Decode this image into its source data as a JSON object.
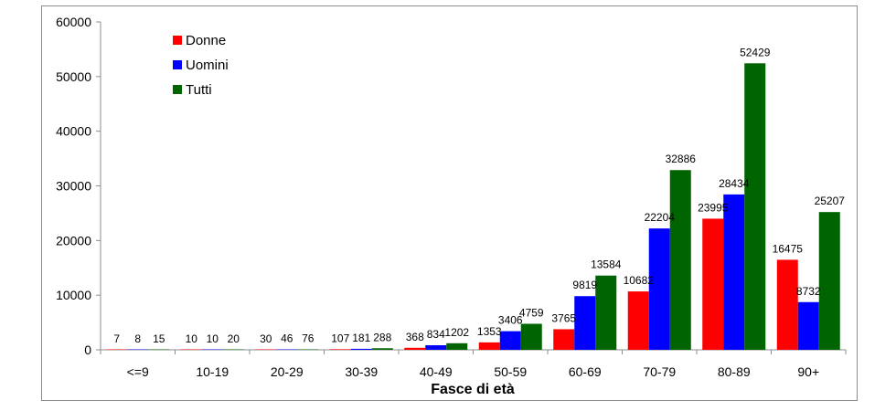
{
  "chart_data": {
    "type": "bar",
    "title": "",
    "xlabel": "Fasce di età",
    "ylabel": "",
    "ylim": [
      0,
      60000
    ],
    "yticks": [
      0,
      10000,
      20000,
      30000,
      40000,
      50000,
      60000
    ],
    "grid": false,
    "legend_position": "top-left",
    "categories": [
      "<=9",
      "10-19",
      "20-29",
      "30-39",
      "40-49",
      "50-59",
      "60-69",
      "70-79",
      "80-89",
      "90+"
    ],
    "series": [
      {
        "name": "Donne",
        "color": "#ff0000",
        "values": [
          7,
          10,
          30,
          107,
          368,
          1353,
          3765,
          10682,
          23995,
          16475
        ]
      },
      {
        "name": "Uomini",
        "color": "#0000ff",
        "values": [
          8,
          10,
          46,
          181,
          834,
          3406,
          9819,
          22204,
          28434,
          8732
        ]
      },
      {
        "name": "Tutti",
        "color": "#006400",
        "values": [
          15,
          20,
          76,
          288,
          1202,
          4759,
          13584,
          32886,
          52429,
          25207
        ]
      }
    ]
  }
}
